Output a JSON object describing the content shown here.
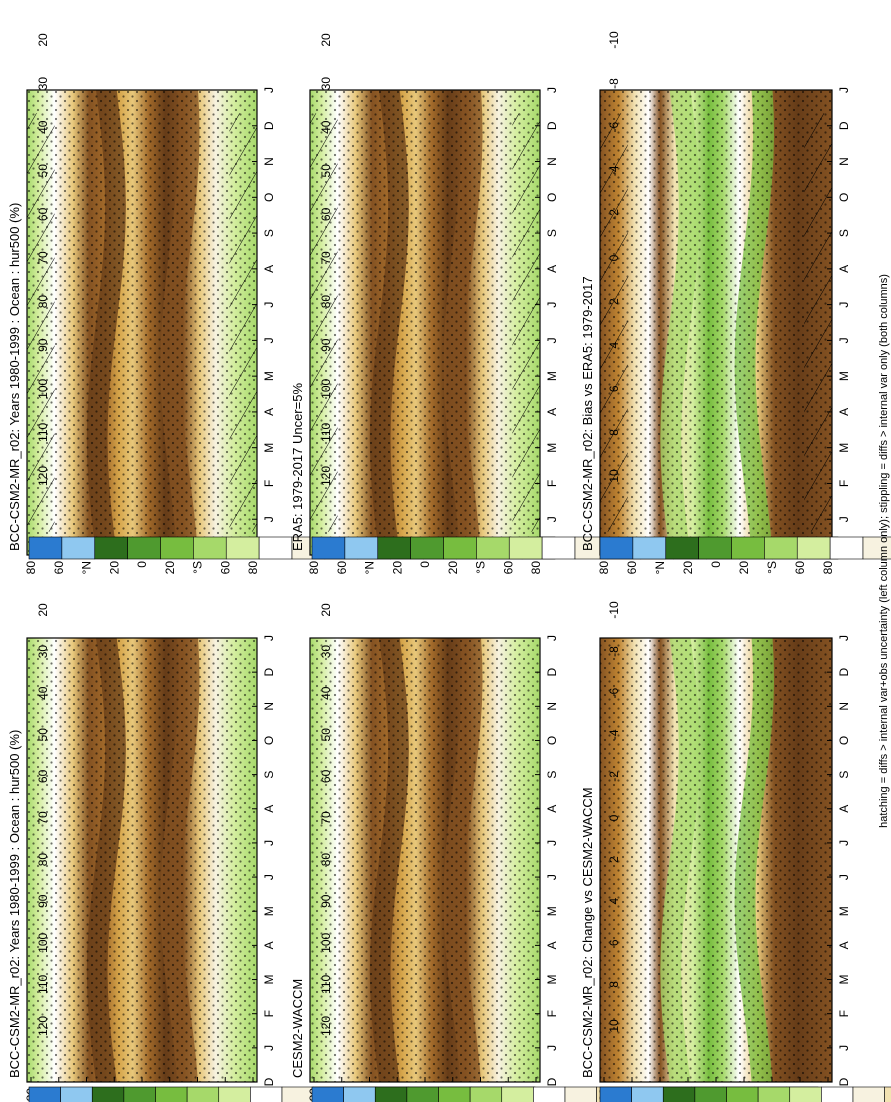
{
  "footer_note": "hatching = diffs > internal var+obs uncertainty (left column only); stippling = diffs > internal var only (both columns)",
  "abs_colorbar": {
    "labels": [
      "120",
      "110",
      "100",
      "90",
      "80",
      "70",
      "60",
      "50",
      "40",
      "30",
      "20"
    ],
    "colors": [
      "#2b7bd0",
      "#8fc8f0",
      "#2d6e1d",
      "#4f9a2f",
      "#77bd3f",
      "#a6d96a",
      "#d4ee9f",
      "#ffffff",
      "#f7f2e0",
      "#f2e2b2",
      "#e8c87b",
      "#d6a54a",
      "#bf8432",
      "#a26a2a",
      "#845222",
      "#663c18"
    ]
  },
  "diff_colorbar": {
    "labels": [
      "10",
      "8",
      "6",
      "4",
      "2",
      "0",
      "-2",
      "-4",
      "-6",
      "-8",
      "-10"
    ],
    "colors": [
      "#2b7bd0",
      "#8fc8f0",
      "#2d6e1d",
      "#4f9a2f",
      "#77bd3f",
      "#a6d96a",
      "#d4ee9f",
      "#ffffff",
      "#f7f2e0",
      "#f2e2b2",
      "#e8c87b",
      "#d6a54a",
      "#bf8432",
      "#a26a2a",
      "#845222",
      "#663c18"
    ]
  },
  "chart_data": [
    {
      "type": "heatmap",
      "id": "model-left",
      "title": "BCC-CSM2-MR_r02: Years 1980-1999 : Ocean : hur500 (%)",
      "x_ticks": [
        "D",
        "J",
        "F",
        "M",
        "A",
        "M",
        "J",
        "J",
        "A",
        "S",
        "O",
        "N",
        "D",
        "J"
      ],
      "y_ticks": [
        "80",
        "60",
        "°N",
        "20",
        "0",
        "20",
        "°S",
        "60",
        "80"
      ],
      "hatching": true,
      "stippling": true,
      "field": "abs"
    },
    {
      "type": "heatmap",
      "id": "obs-left",
      "title": "ERA5: 1979-2017 Uncer=5%",
      "x_ticks": [
        "D",
        "J",
        "F",
        "M",
        "A",
        "M",
        "J",
        "J",
        "A",
        "S",
        "O",
        "N",
        "D",
        "J"
      ],
      "y_ticks": [
        "80",
        "60",
        "°N",
        "20",
        "0",
        "20",
        "°S",
        "60",
        "80"
      ],
      "hatching": true,
      "stippling": true,
      "field": "abs"
    },
    {
      "type": "heatmap",
      "id": "bias-left",
      "title": "BCC-CSM2-MR_r02: Bias vs ERA5: 1979-2017",
      "x_ticks": [
        "D",
        "J",
        "F",
        "M",
        "A",
        "M",
        "J",
        "J",
        "A",
        "S",
        "O",
        "N",
        "D",
        "J"
      ],
      "y_ticks": [
        "80",
        "60",
        "°N",
        "20",
        "0",
        "20",
        "°S",
        "60",
        "80"
      ],
      "hatching": true,
      "stippling": true,
      "field": "diff"
    },
    {
      "type": "heatmap",
      "id": "model-right",
      "title": "BCC-CSM2-MR_r02: Years 1980-1999 : Ocean : hur500 (%)",
      "x_ticks": [
        "D",
        "J",
        "F",
        "M",
        "A",
        "M",
        "J",
        "J",
        "A",
        "S",
        "O",
        "N",
        "D",
        "J"
      ],
      "y_ticks": [
        "80",
        "60",
        "°N",
        "20",
        "0",
        "20",
        "°S",
        "60",
        "80"
      ],
      "hatching": false,
      "stippling": true,
      "field": "abs"
    },
    {
      "type": "heatmap",
      "id": "ref-right",
      "title": "CESM2-WACCM",
      "x_ticks": [
        "D",
        "J",
        "F",
        "M",
        "A",
        "M",
        "J",
        "J",
        "A",
        "S",
        "O",
        "N",
        "D",
        "J"
      ],
      "y_ticks": [
        "80",
        "60",
        "°N",
        "20",
        "0",
        "20",
        "°S",
        "60",
        "80"
      ],
      "hatching": false,
      "stippling": true,
      "field": "abs"
    },
    {
      "type": "heatmap",
      "id": "change-right",
      "title": "BCC-CSM2-MR_r02: Change vs CESM2-WACCM",
      "x_ticks": [
        "D",
        "J",
        "F",
        "M",
        "A",
        "M",
        "J",
        "J",
        "A",
        "S",
        "O",
        "N",
        "D",
        "J"
      ],
      "y_ticks": [
        "80",
        "60",
        "°N",
        "20",
        "0",
        "20",
        "°S",
        "60",
        "80"
      ],
      "hatching": false,
      "stippling": true,
      "field": "diff"
    }
  ]
}
